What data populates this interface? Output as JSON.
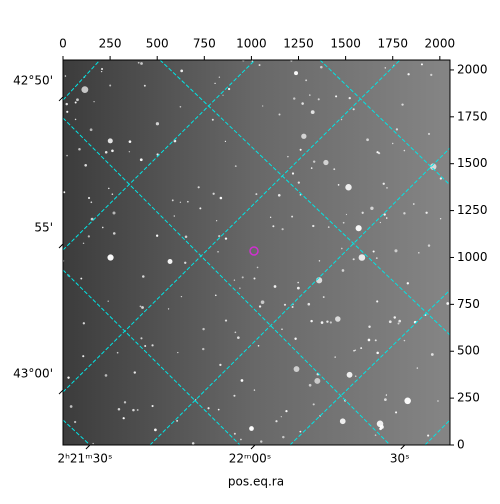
{
  "chart_data": {
    "type": "image",
    "xlabel": "pos.eq.ra",
    "xlim": [
      0,
      2054
    ],
    "ylim": [
      0,
      2053
    ],
    "xticks": [
      0,
      250,
      500,
      750,
      1000,
      1250,
      1500,
      1750,
      2000
    ],
    "yticks": [
      0,
      250,
      500,
      750,
      1000,
      1250,
      1500,
      1750,
      2000
    ],
    "dec_ticks": [
      {
        "value": 1856,
        "label": "42°50'"
      },
      {
        "value": 1072,
        "label": "55'"
      },
      {
        "value": 293,
        "label": "43°00'"
      }
    ],
    "ra_ticks": [
      {
        "value": 143,
        "label": "2ʰ21ᵐ30ˢ"
      },
      {
        "value": 1019,
        "label": "22ᵐ00ˢ"
      },
      {
        "value": 1814,
        "label": "30ˢ"
      }
    ],
    "grid_color": "#00e5e5"
  }
}
